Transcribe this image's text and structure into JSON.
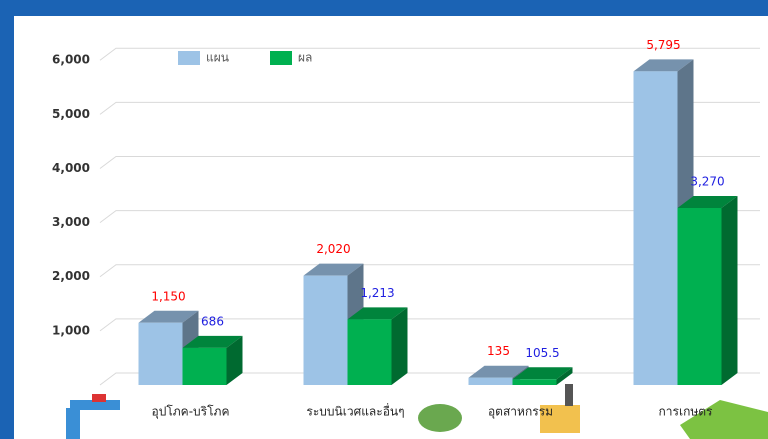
{
  "chart_data": {
    "type": "bar3d",
    "categories": [
      "อุปโภค-บริโภค",
      "ระบบนิเวศและอื่นๆ",
      "อุตสาหกรรม",
      "การเกษตร"
    ],
    "series": [
      {
        "name": "แผน",
        "color": "#9dc3e6",
        "label_color": "#ff0000",
        "values": [
          1150,
          2020,
          135,
          5795
        ],
        "value_labels": [
          "1,150",
          "2,020",
          "135",
          "5,795"
        ]
      },
      {
        "name": "ผล",
        "color": "#00b050",
        "label_color": "#1f1fe0",
        "values": [
          686,
          1213,
          105.5,
          3270
        ],
        "value_labels": [
          "686",
          "1,213",
          "105.5",
          "3,270"
        ]
      }
    ],
    "ylim": [
      0,
      6300
    ],
    "yticks": [
      {
        "value": 1000,
        "label": "1,000"
      },
      {
        "value": 2000,
        "label": "2,000"
      },
      {
        "value": 3000,
        "label": "3,000"
      },
      {
        "value": 4000,
        "label": "4,000"
      },
      {
        "value": 5000,
        "label": "5,000"
      },
      {
        "value": 6000,
        "label": "6,000"
      }
    ],
    "grid": true
  }
}
